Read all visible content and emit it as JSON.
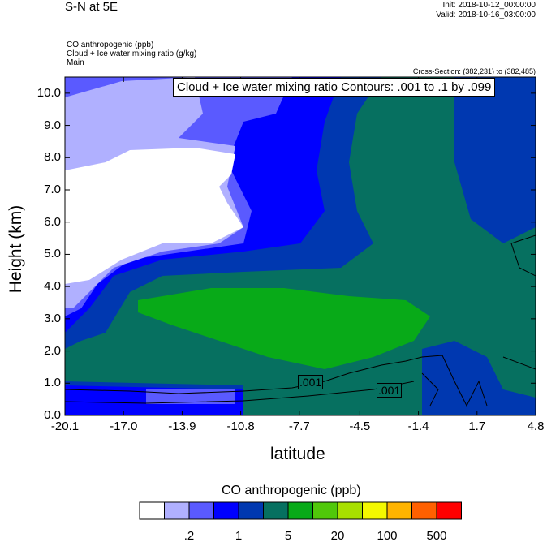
{
  "header": {
    "title": "S-N at 5E",
    "init": "Init: 2018-10-12_00:00:00",
    "valid": "Valid: 2018-10-16_03:00:00",
    "fields": [
      "CO anthropogenic   (ppb)",
      "Cloud + Ice water mixing ratio   (g/kg)",
      "Main"
    ],
    "cross_section": "Cross-Section: (382,231) to (382,485)"
  },
  "chart_data": {
    "type": "heatmap",
    "title": "S-N at 5E",
    "contour_label": "Cloud + Ice water mixing ratio Contours: .001 to .1 by .099",
    "contour_values": [
      ".001",
      ".001"
    ],
    "xlabel": "latitude",
    "ylabel": "Height (km)",
    "xlim": [
      -20.1,
      4.8
    ],
    "ylim": [
      0,
      10.5
    ],
    "xticks": [
      "-20.1",
      "-17.0",
      "-13.9",
      "-10.8",
      "-7.7",
      "-4.5",
      "-1.4",
      "1.7",
      "4.8"
    ],
    "xtick_values": [
      -20.1,
      -17.0,
      -13.9,
      -10.8,
      -7.7,
      -4.5,
      -1.4,
      1.7,
      4.8
    ],
    "yticks": [
      "0.0",
      "1.0",
      "2.0",
      "3.0",
      "4.0",
      "5.0",
      "6.0",
      "7.0",
      "8.0",
      "9.0",
      "10.0"
    ],
    "ytick_values": [
      0,
      1,
      2,
      3,
      4,
      5,
      6,
      7,
      8,
      9,
      10
    ],
    "colorbar": {
      "title": "CO anthropogenic  (ppb)",
      "colors": [
        "#ffffff",
        "#b0b0ff",
        "#5a5aff",
        "#0000ff",
        "#0038b0",
        "#067060",
        "#08aa18",
        "#50c80a",
        "#a8e000",
        "#f4f800",
        "#ffb400",
        "#ff6000",
        "#ff0000"
      ],
      "labels": [
        ".2",
        "1",
        "5",
        "20",
        "100",
        "500"
      ],
      "label_boundary_index": [
        2,
        4,
        6,
        8,
        10,
        12
      ]
    }
  }
}
